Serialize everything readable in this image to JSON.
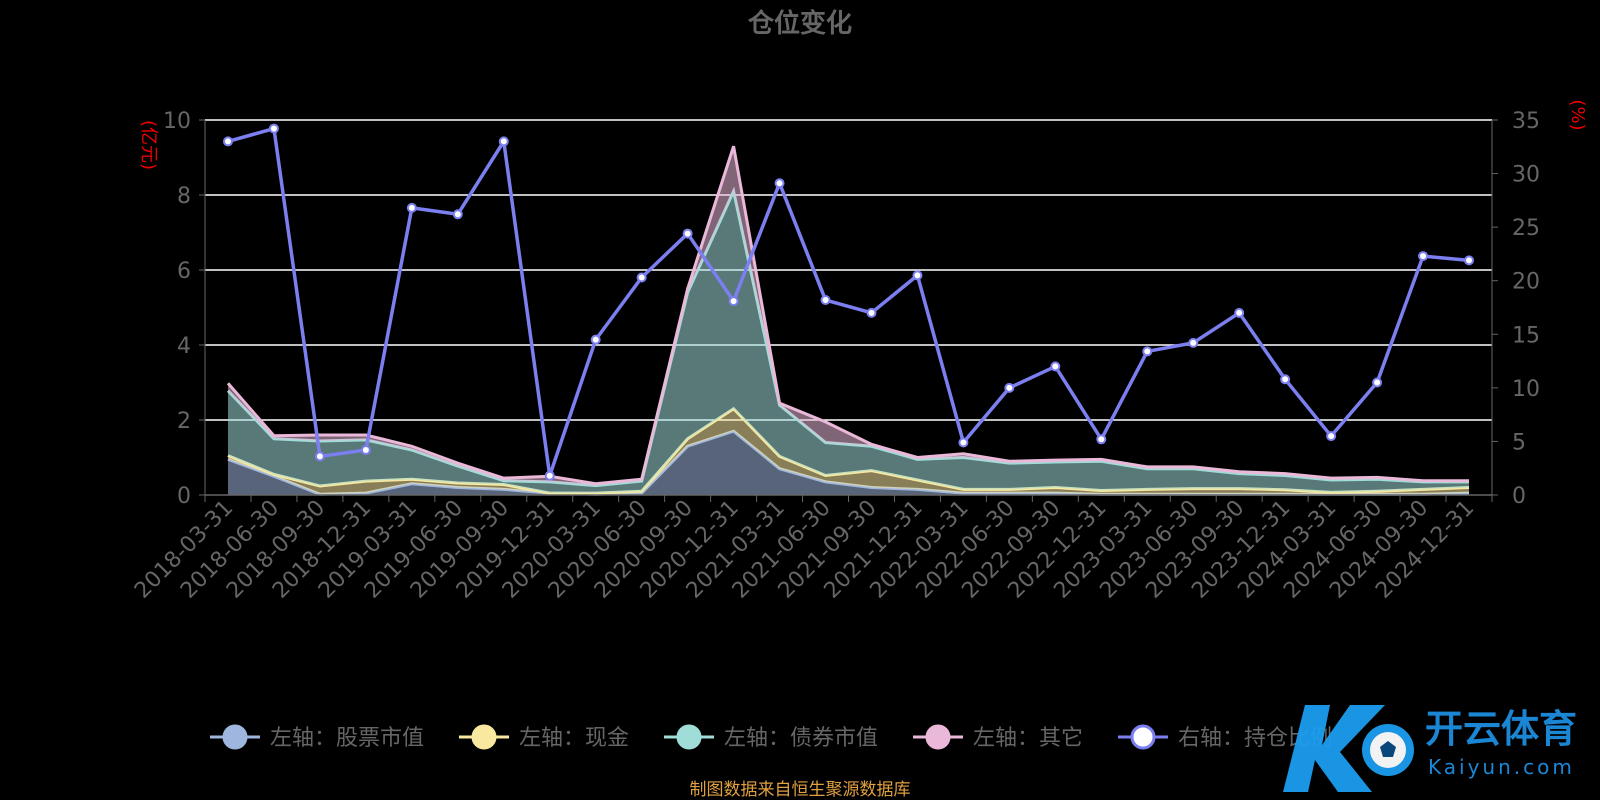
{
  "chart_data": {
    "type": "area",
    "title": "仓位变化",
    "left_unit": "(亿元)",
    "right_unit": "(%)",
    "ylim_left": [
      0,
      10
    ],
    "ylim_right": [
      0,
      35
    ],
    "left_ticks": [
      "0",
      "2",
      "4",
      "6",
      "8",
      "10"
    ],
    "right_ticks": [
      "0",
      "5",
      "10",
      "15",
      "20",
      "25",
      "30",
      "35"
    ],
    "categories": [
      "2018-03-31",
      "2018-06-30",
      "2018-09-30",
      "2018-12-31",
      "2019-03-31",
      "2019-06-30",
      "2019-09-30",
      "2019-12-31",
      "2020-03-31",
      "2020-06-30",
      "2020-09-30",
      "2020-12-31",
      "2021-03-31",
      "2021-06-30",
      "2021-09-30",
      "2021-12-31",
      "2022-03-31",
      "2022-06-30",
      "2022-09-30",
      "2022-12-31",
      "2023-03-31",
      "2023-06-30",
      "2023-09-30",
      "2023-12-31",
      "2024-03-31",
      "2024-06-30",
      "2024-09-30",
      "2024-12-31"
    ],
    "series": [
      {
        "name": "左轴：股票市值",
        "axis": "left",
        "stack": true,
        "color": "#9fb6de",
        "values": [
          0.95,
          0.5,
          0.02,
          0.05,
          0.3,
          0.2,
          0.15,
          0.05,
          0.02,
          0.05,
          1.3,
          1.7,
          0.7,
          0.35,
          0.2,
          0.15,
          0.05,
          0.05,
          0.05,
          0.02,
          0.02,
          0.02,
          0.02,
          0.02,
          0.02,
          0.02,
          0.02,
          0.05
        ]
      },
      {
        "name": "左轴：现金",
        "axis": "left",
        "stack": true,
        "color": "#f8e8a0",
        "values": [
          0.1,
          0.05,
          0.22,
          0.32,
          0.12,
          0.12,
          0.13,
          0.0,
          0.03,
          0.05,
          0.2,
          0.6,
          0.33,
          0.17,
          0.45,
          0.25,
          0.1,
          0.1,
          0.15,
          0.1,
          0.13,
          0.15,
          0.15,
          0.12,
          0.05,
          0.08,
          0.13,
          0.15
        ]
      },
      {
        "name": "左轴：债券市值",
        "axis": "left",
        "stack": true,
        "color": "#a0dcd8",
        "values": [
          1.73,
          0.95,
          1.2,
          1.1,
          0.78,
          0.45,
          0.1,
          0.3,
          0.2,
          0.27,
          3.9,
          5.8,
          1.37,
          0.88,
          0.65,
          0.55,
          0.85,
          0.7,
          0.68,
          0.78,
          0.55,
          0.53,
          0.4,
          0.38,
          0.33,
          0.32,
          0.2,
          0.15
        ]
      },
      {
        "name": "左轴：其它",
        "axis": "left",
        "stack": true,
        "color": "#eab8d8",
        "values": [
          0.2,
          0.08,
          0.16,
          0.13,
          0.1,
          0.08,
          0.07,
          0.15,
          0.05,
          0.05,
          0.1,
          1.2,
          0.05,
          0.55,
          0.05,
          0.05,
          0.1,
          0.05,
          0.05,
          0.05,
          0.05,
          0.05,
          0.05,
          0.05,
          0.05,
          0.05,
          0.03,
          0.03
        ]
      },
      {
        "name": "右轴：持仓比例",
        "axis": "right",
        "stack": false,
        "color": "#7b7ff0",
        "values": [
          33.0,
          34.2,
          3.6,
          4.2,
          26.8,
          26.2,
          33.0,
          1.8,
          14.5,
          20.3,
          24.4,
          18.1,
          29.1,
          18.2,
          17.0,
          20.5,
          4.9,
          10.0,
          12.0,
          5.2,
          13.4,
          14.2,
          17.0,
          10.8,
          5.5,
          10.5,
          22.3,
          21.9
        ]
      }
    ],
    "grid": true,
    "legend_position": "bottom"
  },
  "source": "制图数据来自恒生聚源数据库",
  "watermark": {
    "name": "开云体育",
    "domain": "Kaiyun.com"
  }
}
